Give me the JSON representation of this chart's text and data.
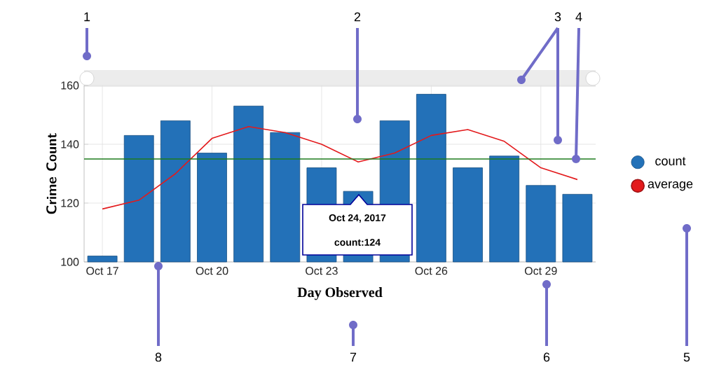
{
  "chart_data": {
    "type": "bar",
    "xlabel": "Day Observed",
    "ylabel": "Crime Count",
    "categories": [
      "Oct 17",
      null,
      null,
      "Oct 20",
      null,
      null,
      "Oct 23",
      null,
      null,
      "Oct 26",
      null,
      null,
      "Oct 29",
      null
    ],
    "series": [
      {
        "name": "count",
        "color": "#2371b8",
        "values": [
          102,
          143,
          148,
          137,
          153,
          144,
          132,
          124,
          148,
          157,
          132,
          136,
          126,
          123
        ]
      },
      {
        "name": "average",
        "type": "line",
        "color": "#e31a1c",
        "values": [
          118,
          121,
          130,
          142,
          146,
          144,
          140,
          134,
          137,
          143,
          145,
          141,
          132,
          128
        ]
      }
    ],
    "ylim": [
      100,
      160
    ],
    "yticks": [
      100,
      120,
      140,
      160
    ],
    "ref_lines": [
      {
        "axis": "y",
        "value": 135,
        "color": "#1e7b1e"
      }
    ],
    "grid": true,
    "legend": "right",
    "marker": "none",
    "annotations": [
      "Oct 24, 2017",
      "count:124",
      "1",
      "2",
      "3",
      {
        "text": "4",
        "y": 135
      },
      "5",
      "6",
      "7",
      "8"
    ]
  }
}
